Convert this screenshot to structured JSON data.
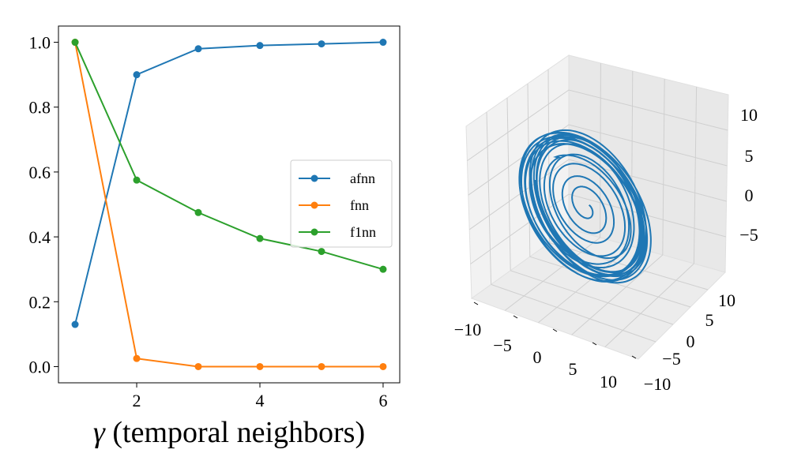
{
  "chart_data": [
    {
      "type": "line",
      "title": "",
      "xlabel_symbol": "γ",
      "xlabel_text": " (temporal neighbors)",
      "ylabel": "",
      "x": [
        1,
        2,
        3,
        4,
        5,
        6
      ],
      "xlim": [
        0.73,
        6.27
      ],
      "ylim": [
        -0.05,
        1.05
      ],
      "xticks": [
        2,
        4,
        6
      ],
      "xtick_labels": [
        "2",
        "4",
        "6"
      ],
      "yticks": [
        0.0,
        0.2,
        0.4,
        0.6,
        0.8,
        1.0
      ],
      "ytick_labels": [
        "0.0",
        "0.2",
        "0.4",
        "0.6",
        "0.8",
        "1.0"
      ],
      "grid": false,
      "legend_position": "center-right",
      "series": [
        {
          "name": "afnn",
          "color": "#1f77b4",
          "values": [
            0.13,
            0.9,
            0.98,
            0.99,
            0.995,
            1.0
          ]
        },
        {
          "name": "fnn",
          "color": "#ff7f0e",
          "values": [
            1.0,
            0.025,
            0.0,
            0.0,
            0.0,
            0.0
          ]
        },
        {
          "name": "f1nn",
          "color": "#2ca02c",
          "values": [
            1.0,
            0.575,
            0.475,
            0.395,
            0.355,
            0.3
          ]
        }
      ]
    },
    {
      "type": "line3d",
      "title": "",
      "color": "#1f77b4",
      "x_tick_labels": [
        "−10",
        "−5",
        "0",
        "5",
        "10"
      ],
      "y_tick_labels": [
        "−10",
        "−5",
        "0",
        "5",
        "10"
      ],
      "z_tick_labels": [
        "−5",
        "0",
        "5",
        "10"
      ],
      "grid": true
    }
  ]
}
